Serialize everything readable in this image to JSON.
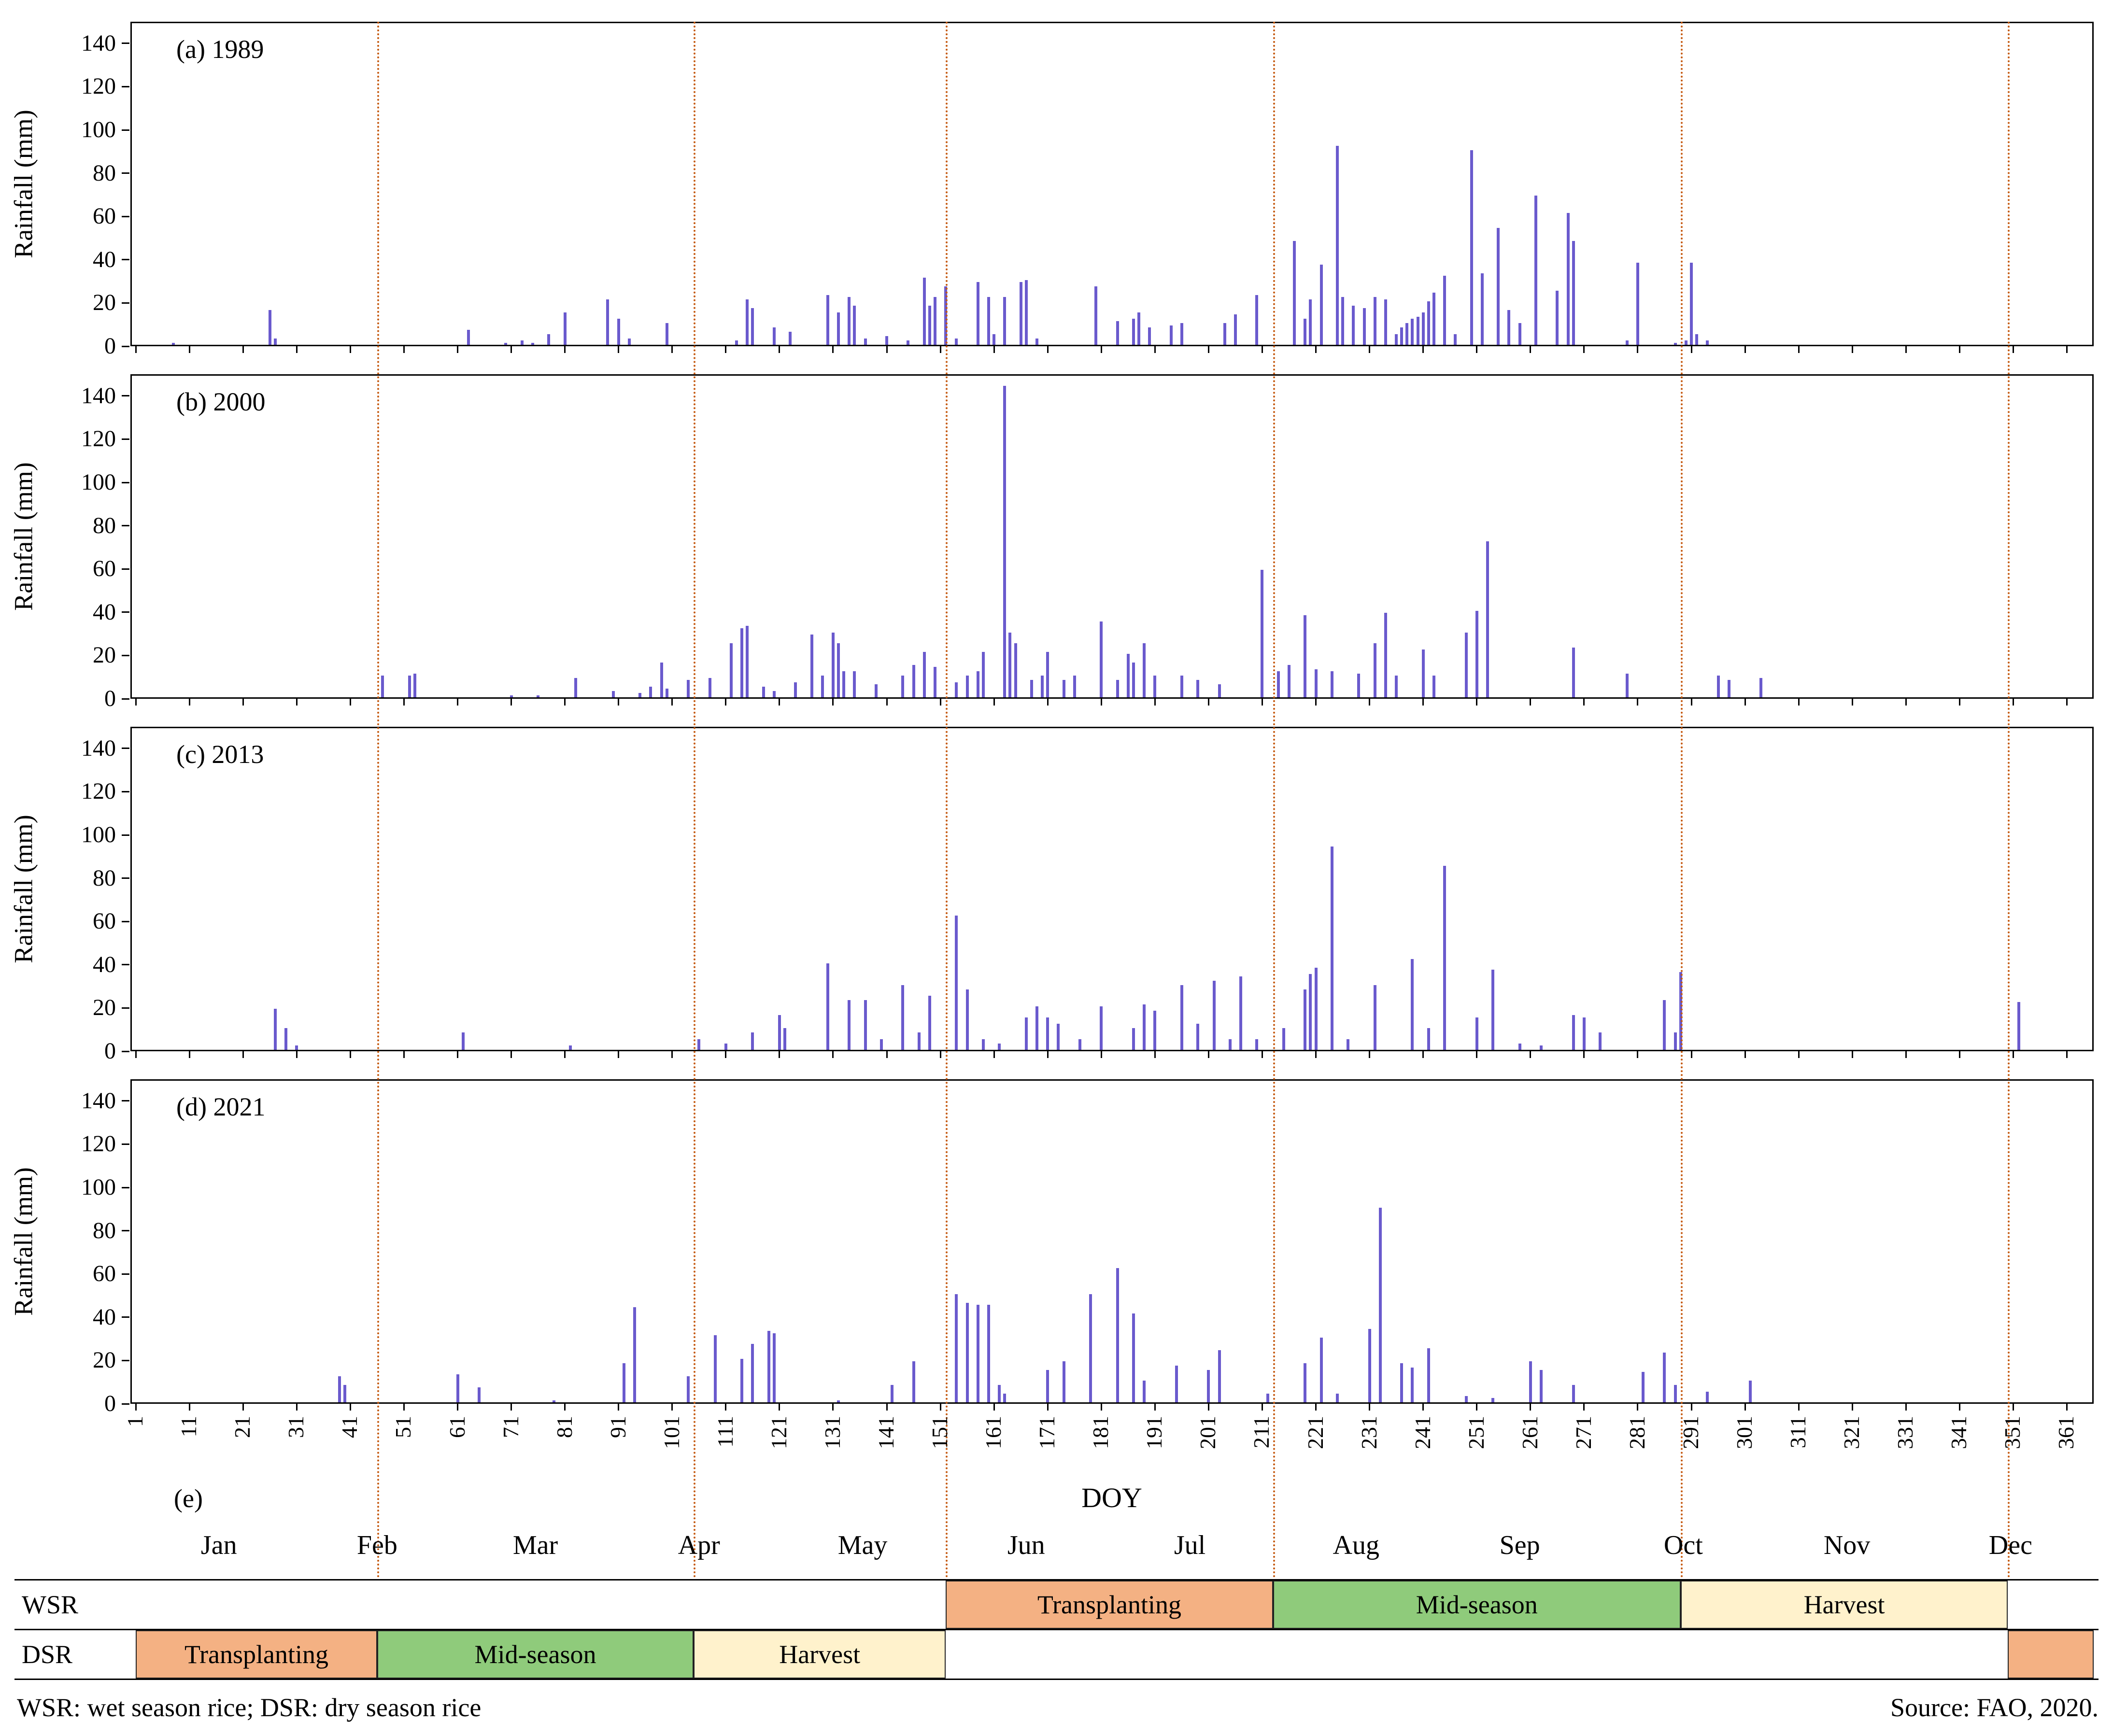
{
  "figure": {
    "xlabel": "DOY",
    "panel_e_label": "(e)",
    "footnote": "WSR: wet season rice; DSR: dry season rice",
    "source": "Source: FAO, 2020."
  },
  "chart_data": {
    "type": "bar",
    "title": "Daily rainfall by day of year for four years",
    "xlabel": "DOY",
    "ylabel": "Rainfall (mm)",
    "ylim": [
      0,
      140
    ],
    "y_ticks": [
      0,
      20,
      40,
      60,
      80,
      100,
      120,
      140
    ],
    "x_ticks": [
      1,
      11,
      21,
      31,
      41,
      51,
      61,
      71,
      81,
      91,
      101,
      111,
      121,
      131,
      141,
      151,
      161,
      171,
      181,
      191,
      201,
      211,
      221,
      231,
      241,
      251,
      261,
      271,
      281,
      291,
      301,
      311,
      321,
      331,
      341,
      351,
      361
    ],
    "grid": false,
    "legend": "none",
    "bar_color": "#6A5ACD",
    "season_boundary_color": "#C55A11",
    "season_boundaries_doy": [
      46,
      105,
      152,
      213,
      289,
      350
    ],
    "panels": [
      {
        "label": "(a) 1989",
        "year": 1989,
        "points": [
          [
            8,
            1
          ],
          [
            26,
            16
          ],
          [
            27,
            3
          ],
          [
            63,
            7
          ],
          [
            70,
            1
          ],
          [
            73,
            2
          ],
          [
            75,
            1
          ],
          [
            78,
            5
          ],
          [
            81,
            15
          ],
          [
            89,
            21
          ],
          [
            91,
            12
          ],
          [
            93,
            3
          ],
          [
            100,
            10
          ],
          [
            113,
            2
          ],
          [
            115,
            21
          ],
          [
            116,
            17
          ],
          [
            120,
            8
          ],
          [
            123,
            6
          ],
          [
            130,
            23
          ],
          [
            132,
            15
          ],
          [
            134,
            22
          ],
          [
            135,
            18
          ],
          [
            137,
            3
          ],
          [
            141,
            4
          ],
          [
            145,
            2
          ],
          [
            148,
            31
          ],
          [
            149,
            18
          ],
          [
            150,
            22
          ],
          [
            152,
            27
          ],
          [
            154,
            3
          ],
          [
            158,
            29
          ],
          [
            160,
            22
          ],
          [
            161,
            5
          ],
          [
            163,
            22
          ],
          [
            166,
            29
          ],
          [
            167,
            30
          ],
          [
            169,
            3
          ],
          [
            180,
            27
          ],
          [
            184,
            11
          ],
          [
            187,
            12
          ],
          [
            188,
            15
          ],
          [
            190,
            8
          ],
          [
            194,
            9
          ],
          [
            196,
            10
          ],
          [
            204,
            10
          ],
          [
            206,
            14
          ],
          [
            210,
            23
          ],
          [
            217,
            48
          ],
          [
            219,
            12
          ],
          [
            220,
            21
          ],
          [
            222,
            37
          ],
          [
            225,
            92
          ],
          [
            226,
            22
          ],
          [
            228,
            18
          ],
          [
            230,
            17
          ],
          [
            232,
            22
          ],
          [
            234,
            21
          ],
          [
            236,
            5
          ],
          [
            237,
            8
          ],
          [
            238,
            10
          ],
          [
            239,
            12
          ],
          [
            240,
            13
          ],
          [
            241,
            15
          ],
          [
            242,
            20
          ],
          [
            243,
            24
          ],
          [
            245,
            32
          ],
          [
            247,
            5
          ],
          [
            250,
            90
          ],
          [
            252,
            33
          ],
          [
            255,
            54
          ],
          [
            257,
            16
          ],
          [
            259,
            10
          ],
          [
            262,
            69
          ],
          [
            266,
            25
          ],
          [
            268,
            61
          ],
          [
            269,
            48
          ],
          [
            279,
            2
          ],
          [
            281,
            38
          ],
          [
            288,
            1
          ],
          [
            290,
            2
          ],
          [
            291,
            38
          ],
          [
            292,
            5
          ],
          [
            294,
            2
          ]
        ]
      },
      {
        "label": "(b) 2000",
        "year": 2000,
        "points": [
          [
            47,
            10
          ],
          [
            52,
            10
          ],
          [
            53,
            11
          ],
          [
            71,
            1
          ],
          [
            76,
            1
          ],
          [
            83,
            9
          ],
          [
            90,
            3
          ],
          [
            95,
            2
          ],
          [
            97,
            5
          ],
          [
            99,
            16
          ],
          [
            100,
            4
          ],
          [
            104,
            8
          ],
          [
            108,
            9
          ],
          [
            112,
            25
          ],
          [
            114,
            32
          ],
          [
            115,
            33
          ],
          [
            118,
            5
          ],
          [
            120,
            3
          ],
          [
            124,
            7
          ],
          [
            127,
            29
          ],
          [
            129,
            10
          ],
          [
            131,
            30
          ],
          [
            132,
            25
          ],
          [
            133,
            12
          ],
          [
            135,
            12
          ],
          [
            139,
            6
          ],
          [
            144,
            10
          ],
          [
            146,
            15
          ],
          [
            148,
            21
          ],
          [
            150,
            14
          ],
          [
            154,
            7
          ],
          [
            156,
            10
          ],
          [
            158,
            12
          ],
          [
            159,
            21
          ],
          [
            163,
            144
          ],
          [
            164,
            30
          ],
          [
            165,
            25
          ],
          [
            168,
            8
          ],
          [
            170,
            10
          ],
          [
            171,
            21
          ],
          [
            174,
            8
          ],
          [
            176,
            10
          ],
          [
            181,
            35
          ],
          [
            184,
            8
          ],
          [
            186,
            20
          ],
          [
            187,
            16
          ],
          [
            189,
            25
          ],
          [
            191,
            10
          ],
          [
            196,
            10
          ],
          [
            199,
            8
          ],
          [
            203,
            6
          ],
          [
            211,
            59
          ],
          [
            214,
            12
          ],
          [
            216,
            15
          ],
          [
            219,
            38
          ],
          [
            221,
            13
          ],
          [
            224,
            12
          ],
          [
            229,
            11
          ],
          [
            232,
            25
          ],
          [
            234,
            39
          ],
          [
            236,
            10
          ],
          [
            241,
            22
          ],
          [
            243,
            10
          ],
          [
            249,
            30
          ],
          [
            251,
            40
          ],
          [
            253,
            72
          ],
          [
            269,
            23
          ],
          [
            279,
            11
          ],
          [
            296,
            10
          ],
          [
            298,
            8
          ],
          [
            304,
            9
          ]
        ]
      },
      {
        "label": "(c) 2013",
        "year": 2013,
        "points": [
          [
            27,
            19
          ],
          [
            29,
            10
          ],
          [
            31,
            2
          ],
          [
            62,
            8
          ],
          [
            82,
            2
          ],
          [
            106,
            5
          ],
          [
            111,
            3
          ],
          [
            116,
            8
          ],
          [
            121,
            16
          ],
          [
            122,
            10
          ],
          [
            130,
            40
          ],
          [
            134,
            23
          ],
          [
            137,
            23
          ],
          [
            140,
            5
          ],
          [
            144,
            30
          ],
          [
            147,
            8
          ],
          [
            149,
            25
          ],
          [
            154,
            62
          ],
          [
            156,
            28
          ],
          [
            159,
            5
          ],
          [
            162,
            3
          ],
          [
            167,
            15
          ],
          [
            169,
            20
          ],
          [
            171,
            15
          ],
          [
            173,
            12
          ],
          [
            177,
            5
          ],
          [
            181,
            20
          ],
          [
            187,
            10
          ],
          [
            189,
            21
          ],
          [
            191,
            18
          ],
          [
            196,
            30
          ],
          [
            199,
            12
          ],
          [
            202,
            32
          ],
          [
            205,
            5
          ],
          [
            207,
            34
          ],
          [
            210,
            5
          ],
          [
            215,
            10
          ],
          [
            219,
            28
          ],
          [
            220,
            35
          ],
          [
            221,
            38
          ],
          [
            224,
            94
          ],
          [
            227,
            5
          ],
          [
            232,
            30
          ],
          [
            239,
            42
          ],
          [
            242,
            10
          ],
          [
            245,
            85
          ],
          [
            251,
            15
          ],
          [
            254,
            37
          ],
          [
            259,
            3
          ],
          [
            263,
            2
          ],
          [
            269,
            16
          ],
          [
            271,
            15
          ],
          [
            274,
            8
          ],
          [
            286,
            23
          ],
          [
            288,
            8
          ],
          [
            289,
            36
          ],
          [
            352,
            22
          ]
        ]
      },
      {
        "label": "(d) 2021",
        "year": 2021,
        "points": [
          [
            39,
            12
          ],
          [
            40,
            8
          ],
          [
            61,
            13
          ],
          [
            65,
            7
          ],
          [
            79,
            1
          ],
          [
            92,
            18
          ],
          [
            94,
            44
          ],
          [
            104,
            12
          ],
          [
            109,
            31
          ],
          [
            114,
            20
          ],
          [
            116,
            27
          ],
          [
            119,
            33
          ],
          [
            120,
            32
          ],
          [
            132,
            1
          ],
          [
            142,
            8
          ],
          [
            146,
            19
          ],
          [
            154,
            50
          ],
          [
            156,
            46
          ],
          [
            158,
            45
          ],
          [
            160,
            45
          ],
          [
            162,
            8
          ],
          [
            163,
            4
          ],
          [
            171,
            15
          ],
          [
            174,
            19
          ],
          [
            179,
            50
          ],
          [
            184,
            62
          ],
          [
            187,
            41
          ],
          [
            189,
            10
          ],
          [
            195,
            17
          ],
          [
            201,
            15
          ],
          [
            203,
            24
          ],
          [
            212,
            4
          ],
          [
            219,
            18
          ],
          [
            222,
            30
          ],
          [
            225,
            4
          ],
          [
            231,
            34
          ],
          [
            233,
            90
          ],
          [
            237,
            18
          ],
          [
            239,
            16
          ],
          [
            242,
            25
          ],
          [
            249,
            3
          ],
          [
            254,
            2
          ],
          [
            261,
            19
          ],
          [
            263,
            15
          ],
          [
            269,
            8
          ],
          [
            282,
            14
          ],
          [
            286,
            23
          ],
          [
            288,
            8
          ],
          [
            294,
            5
          ],
          [
            302,
            10
          ]
        ]
      }
    ]
  },
  "calendar": {
    "months": [
      "Jan",
      "Feb",
      "Mar",
      "Apr",
      "May",
      "Jun",
      "Jul",
      "Aug",
      "Sep",
      "Oct",
      "Nov",
      "Dec"
    ]
  },
  "seasons": {
    "wsr_label": "WSR",
    "dsr_label": "DSR",
    "stage_colors": {
      "Transplanting": "#F4B183",
      "Mid-season": "#8FCB7B",
      "Harvest": "#FFF2CC"
    },
    "wsr": [
      {
        "stage": "Transplanting",
        "start_doy": 152,
        "end_doy": 213
      },
      {
        "stage": "Mid-season",
        "start_doy": 213,
        "end_doy": 289
      },
      {
        "stage": "Harvest",
        "start_doy": 289,
        "end_doy": 350
      }
    ],
    "dsr": [
      {
        "stage": "Transplanting",
        "start_doy": 1,
        "end_doy": 46
      },
      {
        "stage": "Mid-season",
        "start_doy": 46,
        "end_doy": 105
      },
      {
        "stage": "Harvest",
        "start_doy": 105,
        "end_doy": 152
      },
      {
        "stage": "Transplanting",
        "start_doy": 350,
        "end_doy": 366,
        "show_label": false
      }
    ]
  }
}
